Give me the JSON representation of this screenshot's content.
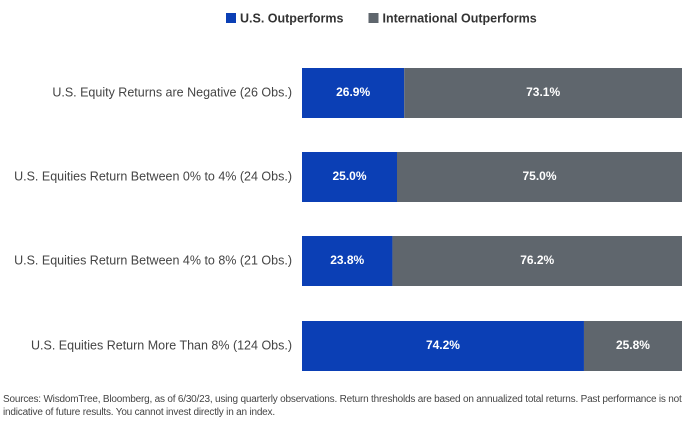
{
  "chart_data": {
    "type": "stacked-bar-horizontal",
    "categories": [
      "U.S. Equity Returns are Negative (26 Obs.)",
      "U.S. Equities Return Between 0% to 4% (24 Obs.)",
      "U.S. Equities Return Between 4% to 8% (21 Obs.)",
      "U.S. Equities Return More Than 8% (124 Obs.)"
    ],
    "series": [
      {
        "name": "U.S. Outperforms",
        "color": "#0b3fb5",
        "values": [
          26.9,
          25.0,
          23.8,
          74.2
        ],
        "value_labels": [
          "26.9%",
          "25.0%",
          "23.8%",
          "74.2%"
        ]
      },
      {
        "name": "International Outperforms",
        "color": "#5f666d",
        "values": [
          73.1,
          75.0,
          76.2,
          25.8
        ],
        "value_labels": [
          "73.1%",
          "75.0%",
          "76.2%",
          "25.8%"
        ]
      }
    ],
    "note": "Sources: WisdomTree, Bloomberg, as of 6/30/23, using quarterly observations. Return thresholds are based on annualized total returns. Past performance is not indicative of future results. You cannot invest directly in an index."
  }
}
